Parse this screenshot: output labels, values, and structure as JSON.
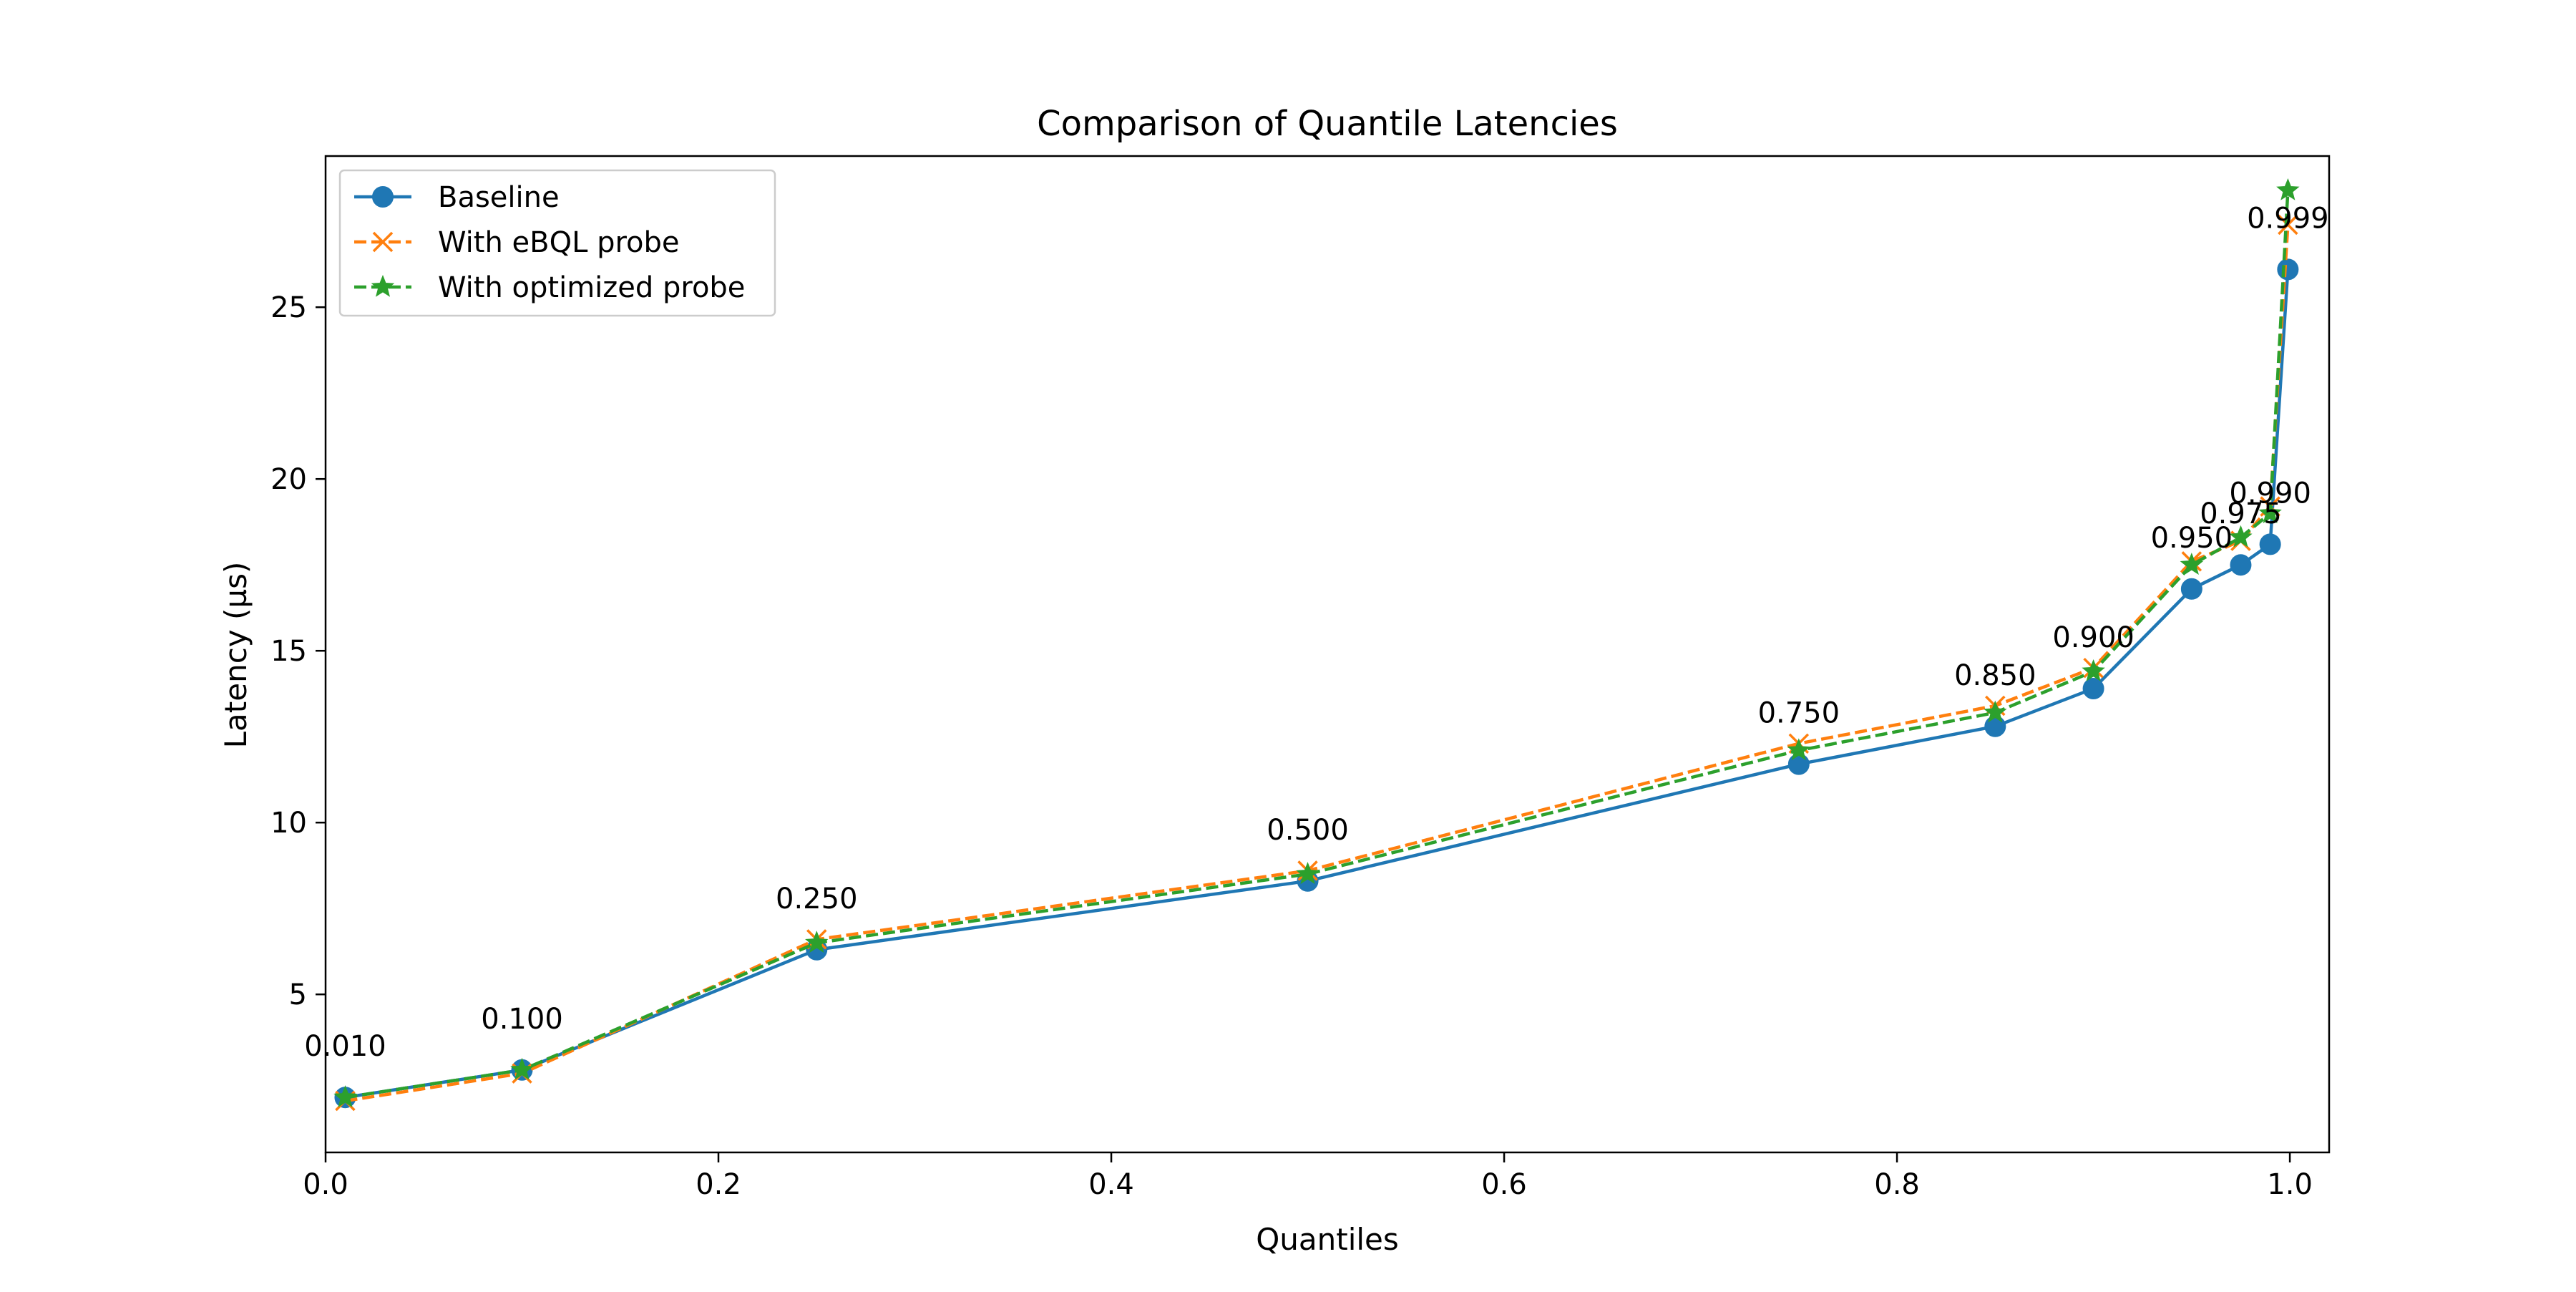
{
  "chart_data": {
    "type": "line",
    "title": "Comparison of Quantile Latencies",
    "xlabel": "Quantiles",
    "ylabel": "Latency (µs)",
    "xlim": [
      0.0,
      1.02
    ],
    "ylim": [
      0.4,
      29.4
    ],
    "xticks": [
      0.0,
      0.2,
      0.4,
      0.6,
      0.8,
      1.0
    ],
    "xtick_labels": [
      "0.0",
      "0.2",
      "0.4",
      "0.6",
      "0.8",
      "1.0"
    ],
    "yticks": [
      5,
      10,
      15,
      20,
      25
    ],
    "ytick_labels": [
      "5",
      "10",
      "15",
      "20",
      "25"
    ],
    "grid": false,
    "legend_position": "upper-left",
    "x": [
      0.01,
      0.1,
      0.25,
      0.5,
      0.75,
      0.85,
      0.9,
      0.95,
      0.975,
      0.99,
      0.999
    ],
    "point_labels": [
      "0.010",
      "0.100",
      "0.250",
      "0.500",
      "0.750",
      "0.850",
      "0.900",
      "0.950",
      "0.975",
      "0.990",
      "0.999"
    ],
    "series": [
      {
        "name": "Baseline",
        "color": "#1f77b4",
        "line_style": "solid",
        "marker": "circle",
        "values": [
          2.0,
          2.8,
          6.3,
          8.3,
          11.7,
          12.8,
          13.9,
          16.8,
          17.5,
          18.1,
          26.1
        ]
      },
      {
        "name": "With eBQL probe",
        "color": "#ff7f0e",
        "line_style": "dashed",
        "marker": "x",
        "values": [
          1.9,
          2.7,
          6.6,
          8.6,
          12.3,
          13.4,
          14.5,
          17.6,
          18.2,
          19.2,
          27.4
        ]
      },
      {
        "name": "With optimized probe",
        "color": "#2ca02c",
        "line_style": "dashed",
        "marker": "star",
        "values": [
          2.0,
          2.8,
          6.5,
          8.5,
          12.1,
          13.2,
          14.4,
          17.5,
          18.3,
          19.0,
          28.4
        ]
      }
    ]
  }
}
